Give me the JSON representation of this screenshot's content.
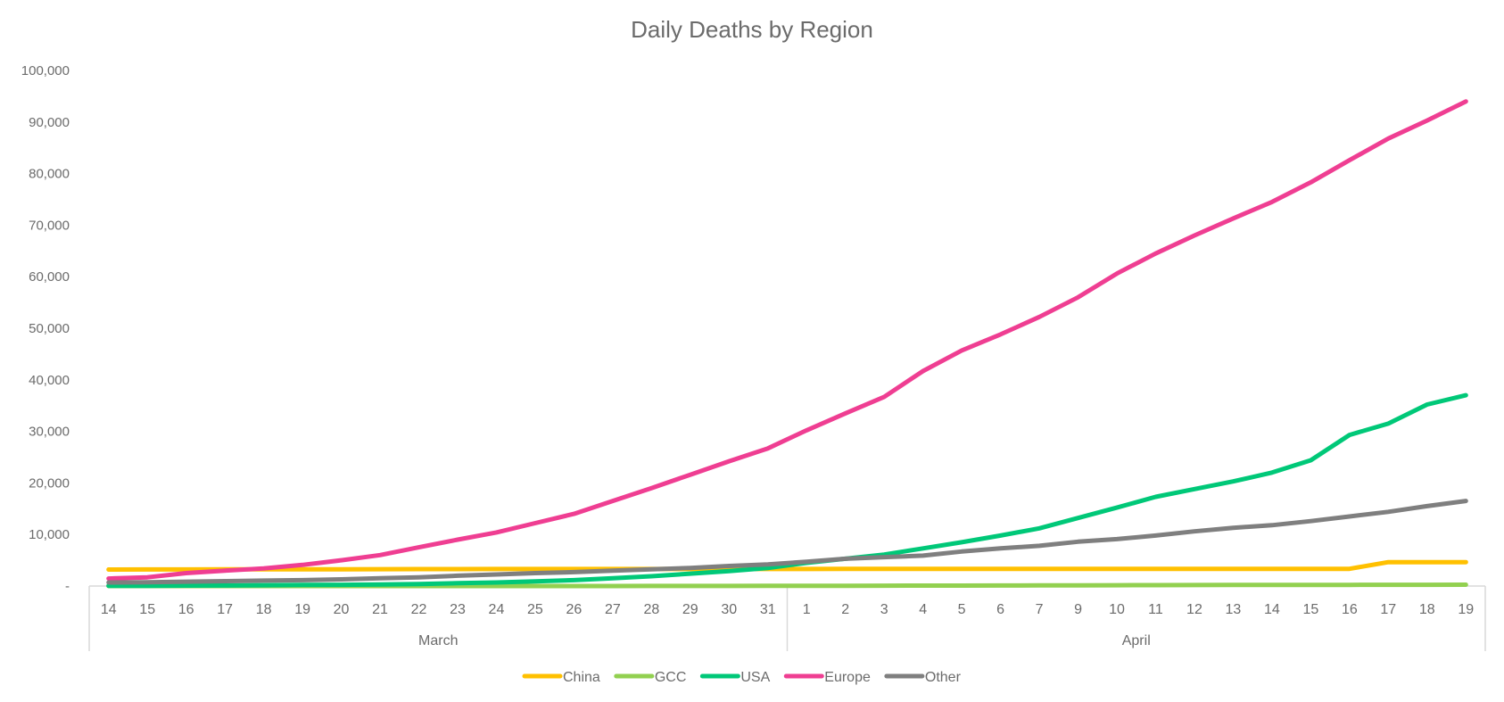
{
  "chart_data": {
    "type": "line",
    "title": "Daily Deaths by Region",
    "xlabel": "",
    "ylabel": "",
    "ylim": [
      0,
      100000
    ],
    "y_ticks": [
      {
        "value": 0,
        "label": "-"
      },
      {
        "value": 10000,
        "label": "10,000"
      },
      {
        "value": 20000,
        "label": "20,000"
      },
      {
        "value": 30000,
        "label": "30,000"
      },
      {
        "value": 40000,
        "label": "40,000"
      },
      {
        "value": 50000,
        "label": "50,000"
      },
      {
        "value": 60000,
        "label": "60,000"
      },
      {
        "value": 70000,
        "label": "70,000"
      },
      {
        "value": 80000,
        "label": "80,000"
      },
      {
        "value": 90000,
        "label": "90,000"
      },
      {
        "value": 100000,
        "label": "100,000"
      }
    ],
    "categories": [
      "14",
      "15",
      "16",
      "17",
      "18",
      "19",
      "20",
      "21",
      "22",
      "23",
      "24",
      "25",
      "26",
      "27",
      "28",
      "29",
      "30",
      "31",
      "1",
      "2",
      "3",
      "4",
      "5",
      "6",
      "7",
      "9",
      "10",
      "11",
      "12",
      "13",
      "14",
      "15",
      "16",
      "17",
      "18",
      "19"
    ],
    "month_groups": [
      {
        "label": "March",
        "count": 18
      },
      {
        "label": "April",
        "count": 18
      }
    ],
    "legend_position": "bottom",
    "series": [
      {
        "name": "China",
        "color": "#FFC000",
        "values": [
          3200,
          3210,
          3220,
          3230,
          3240,
          3250,
          3260,
          3270,
          3280,
          3290,
          3300,
          3300,
          3300,
          3300,
          3300,
          3310,
          3310,
          3310,
          3310,
          3320,
          3330,
          3330,
          3330,
          3330,
          3340,
          3340,
          3340,
          3340,
          3340,
          3340,
          3340,
          3340,
          3340,
          4640,
          4640,
          4640
        ]
      },
      {
        "name": "GCC",
        "color": "#92D050",
        "values": [
          0,
          0,
          0,
          0,
          0,
          0,
          0,
          1,
          1,
          2,
          3,
          4,
          5,
          8,
          12,
          16,
          22,
          30,
          40,
          52,
          65,
          80,
          95,
          110,
          125,
          140,
          155,
          170,
          185,
          200,
          210,
          220,
          230,
          240,
          250,
          260
        ]
      },
      {
        "name": "USA",
        "color": "#00C878",
        "values": [
          50,
          60,
          80,
          100,
          150,
          200,
          250,
          300,
          400,
          550,
          700,
          900,
          1150,
          1500,
          1900,
          2400,
          2900,
          3500,
          4500,
          5300,
          6100,
          7300,
          8500,
          9800,
          11200,
          13200,
          15200,
          17300,
          18800,
          20300,
          22000,
          24400,
          29300,
          31500,
          35200,
          37000
        ]
      },
      {
        "name": "Europe",
        "color": "#EF3E92",
        "values": [
          1450,
          1700,
          2500,
          3000,
          3400,
          4100,
          5000,
          6000,
          7500,
          9000,
          10400,
          12200,
          14000,
          16500,
          19000,
          21600,
          24200,
          26700,
          30200,
          33500,
          36700,
          41700,
          45700,
          48800,
          52200,
          56000,
          60600,
          64500,
          68000,
          71300,
          74500,
          78300,
          82600,
          86800,
          90300,
          94000
        ]
      },
      {
        "name": "Other",
        "color": "#7F7F7F",
        "values": [
          700,
          750,
          850,
          950,
          1050,
          1150,
          1300,
          1500,
          1700,
          2000,
          2250,
          2500,
          2700,
          3000,
          3250,
          3500,
          3900,
          4200,
          4700,
          5300,
          5600,
          5900,
          6700,
          7300,
          7800,
          8600,
          9100,
          9800,
          10600,
          11300,
          11800,
          12600,
          13500,
          14400,
          15500,
          16500
        ]
      }
    ]
  }
}
